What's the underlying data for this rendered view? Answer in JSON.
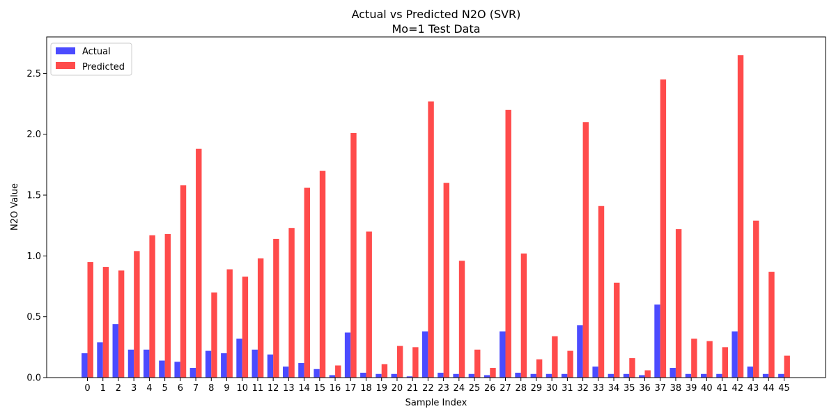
{
  "chart_data": {
    "type": "bar",
    "title": "Actual vs Predicted N2O (SVR)",
    "subtitle": "Mo=1 Test Data",
    "xlabel": "Sample Index",
    "ylabel": "N2O Value",
    "ylim": [
      0,
      2.8
    ],
    "yticks": [
      "0.0",
      "0.5",
      "1.0",
      "1.5",
      "2.0",
      "2.5"
    ],
    "legend_position": "top-left",
    "grid": false,
    "categories": [
      "0",
      "1",
      "2",
      "3",
      "4",
      "5",
      "6",
      "7",
      "8",
      "9",
      "10",
      "11",
      "12",
      "13",
      "14",
      "15",
      "16",
      "17",
      "18",
      "19",
      "20",
      "21",
      "22",
      "23",
      "24",
      "25",
      "26",
      "27",
      "28",
      "29",
      "30",
      "31",
      "32",
      "33",
      "34",
      "35",
      "36",
      "37",
      "38",
      "39",
      "40",
      "41",
      "42",
      "43",
      "44",
      "45"
    ],
    "series": [
      {
        "name": "Actual",
        "color": "#4b4bff",
        "values": [
          0.2,
          0.29,
          0.44,
          0.23,
          0.23,
          0.14,
          0.13,
          0.08,
          0.22,
          0.2,
          0.32,
          0.23,
          0.19,
          0.09,
          0.12,
          0.07,
          0.02,
          0.37,
          0.04,
          0.03,
          0.03,
          0.01,
          0.38,
          0.04,
          0.03,
          0.03,
          0.02,
          0.38,
          0.04,
          0.03,
          0.03,
          0.03,
          0.43,
          0.09,
          0.03,
          0.03,
          0.02,
          0.6,
          0.08,
          0.03,
          0.03,
          0.03,
          0.38,
          0.09,
          0.03,
          0.03
        ]
      },
      {
        "name": "Predicted",
        "color": "#ff4b4b",
        "values": [
          0.95,
          0.91,
          0.88,
          1.04,
          1.17,
          1.18,
          1.58,
          1.88,
          0.7,
          0.89,
          0.83,
          0.98,
          1.14,
          1.23,
          1.56,
          1.7,
          0.1,
          2.01,
          1.2,
          0.11,
          0.26,
          0.25,
          2.27,
          1.6,
          0.96,
          0.23,
          0.08,
          2.2,
          1.02,
          0.15,
          0.34,
          0.22,
          2.1,
          1.41,
          0.78,
          0.16,
          0.06,
          2.45,
          1.22,
          0.32,
          0.3,
          0.25,
          2.65,
          1.29,
          0.87,
          0.18
        ]
      }
    ]
  }
}
